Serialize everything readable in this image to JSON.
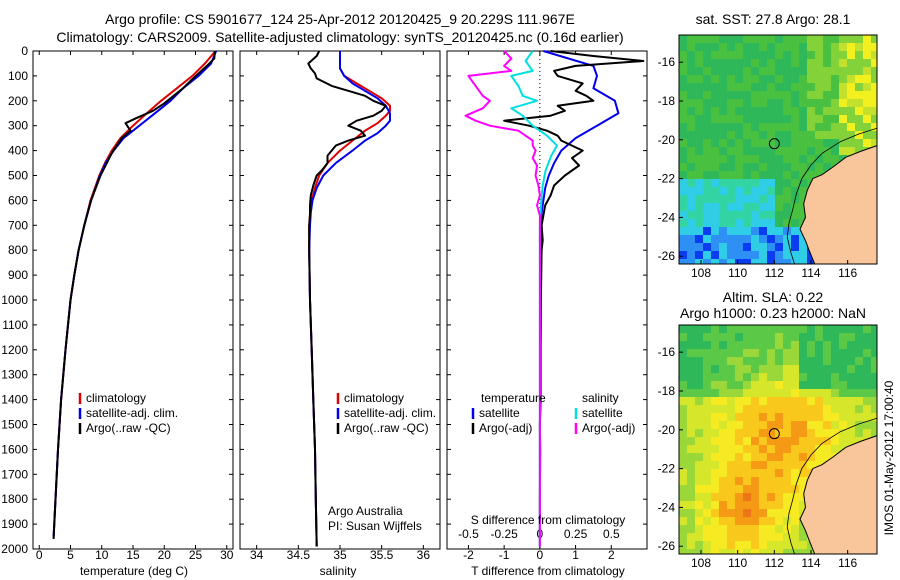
{
  "title": {
    "line1": "Argo profile: CS 5901677_124 25-Apr-2012 20120425_9 20.229S 111.967E",
    "line2": "Climatology: CARS2009. Satellite-adjusted climatology: synTS_20120425.nc (0.16d earlier)"
  },
  "colors": {
    "climatology": "#e00000",
    "satellite": "#0000ee",
    "argo": "#000000",
    "salinity_satellite": "#00e0e0",
    "salinity_argo": "#ff00ff",
    "land": "#f8c69a"
  },
  "depth_axis": {
    "range": [
      0,
      2000
    ],
    "ticks": [
      "0",
      "100",
      "200",
      "300",
      "400",
      "500",
      "600",
      "700",
      "800",
      "900",
      "1000",
      "1100",
      "1200",
      "1300",
      "1400",
      "1500",
      "1600",
      "1700",
      "1800",
      "1900",
      "2000"
    ]
  },
  "chart_data": [
    {
      "id": "temperature",
      "type": "line",
      "xlabel": "temperature (deg C)",
      "xlim": [
        -1,
        31
      ],
      "xticks": [
        "0",
        "5",
        "10",
        "15",
        "20",
        "25",
        "30"
      ],
      "legend": [
        "climatology",
        "satellite-adj. clim.",
        "Argo(..raw -QC)"
      ],
      "series": [
        {
          "name": "climatology",
          "depth": [
            0,
            50,
            100,
            150,
            200,
            250,
            300,
            350,
            400,
            450,
            500,
            600,
            700,
            800,
            900,
            1000,
            1200,
            1400,
            1600,
            1800,
            1950
          ],
          "values": [
            28.2,
            26.5,
            24.5,
            22.0,
            19.5,
            17.2,
            15.0,
            13.0,
            11.6,
            10.5,
            9.6,
            8.2,
            7.2,
            6.3,
            5.6,
            5.0,
            4.2,
            3.5,
            3.0,
            2.6,
            2.3
          ]
        },
        {
          "name": "satellite-adj. clim.",
          "depth": [
            0,
            50,
            100,
            150,
            200,
            250,
            300,
            350,
            400,
            450,
            500,
            600,
            700,
            800,
            900,
            1000,
            1200,
            1400,
            1600,
            1800,
            1950
          ],
          "values": [
            28.3,
            27.5,
            25.5,
            23.0,
            21.0,
            18.5,
            16.0,
            13.5,
            11.9,
            10.6,
            9.7,
            8.3,
            7.2,
            6.3,
            5.6,
            5.0,
            4.2,
            3.5,
            3.0,
            2.6,
            2.3
          ]
        },
        {
          "name": "Argo(..raw -QC)",
          "depth": [
            0,
            30,
            60,
            90,
            120,
            150,
            180,
            210,
            240,
            270,
            290,
            320,
            350,
            380,
            410,
            450,
            500,
            600,
            700,
            800,
            900,
            1000,
            1200,
            1400,
            1600,
            1800,
            1960
          ],
          "values": [
            28.1,
            28.0,
            26.8,
            25.5,
            24.2,
            23.0,
            21.5,
            20.0,
            18.2,
            15.5,
            13.8,
            14.6,
            13.2,
            12.4,
            11.6,
            10.8,
            9.8,
            8.3,
            7.2,
            6.3,
            5.6,
            5.0,
            4.2,
            3.5,
            3.0,
            2.6,
            2.3
          ]
        }
      ]
    },
    {
      "id": "salinity",
      "type": "line",
      "xlabel": "salinity",
      "xlim": [
        33.8,
        36.2
      ],
      "xticks": [
        "34",
        "34.5",
        "35",
        "35.5",
        "36"
      ],
      "legend": [
        "climatology",
        "satellite-adj. clim.",
        "Argo(..raw -QC)"
      ],
      "annotation": [
        "Argo Australia",
        "PI: Susan Wijffels"
      ],
      "series": [
        {
          "name": "climatology",
          "depth": [
            0,
            40,
            70,
            100,
            130,
            160,
            190,
            220,
            240,
            260,
            290,
            320,
            360,
            400,
            450,
            500,
            550,
            600,
            650,
            700,
            800,
            1000,
            1200,
            1400,
            1600,
            1800,
            1990
          ],
          "values": [
            35.0,
            35.0,
            35.0,
            35.05,
            35.2,
            35.35,
            35.5,
            35.6,
            35.6,
            35.55,
            35.45,
            35.3,
            35.15,
            35.0,
            34.85,
            34.75,
            34.7,
            34.66,
            34.64,
            34.63,
            34.63,
            34.64,
            34.66,
            34.68,
            34.7,
            34.71,
            34.72
          ]
        },
        {
          "name": "satellite-adj. clim.",
          "depth": [
            0,
            40,
            70,
            100,
            130,
            160,
            190,
            220,
            250,
            280,
            300,
            330,
            360,
            400,
            450,
            500,
            550,
            600,
            650,
            700,
            800,
            1000,
            1200,
            1400,
            1600,
            1800,
            1990
          ],
          "values": [
            35.0,
            35.0,
            35.0,
            35.05,
            35.15,
            35.3,
            35.45,
            35.55,
            35.6,
            35.6,
            35.55,
            35.45,
            35.3,
            35.15,
            34.95,
            34.8,
            34.72,
            34.67,
            34.65,
            34.64,
            34.63,
            34.64,
            34.66,
            34.68,
            34.7,
            34.71,
            34.72
          ]
        },
        {
          "name": "Argo(..raw -QC)",
          "depth": [
            0,
            20,
            50,
            70,
            90,
            110,
            140,
            160,
            180,
            200,
            220,
            240,
            260,
            280,
            300,
            320,
            340,
            360,
            380,
            400,
            420,
            450,
            480,
            500,
            540,
            580,
            620,
            660,
            700,
            760,
            800,
            1000,
            1200,
            1400,
            1600,
            1800,
            1990
          ],
          "values": [
            34.75,
            34.72,
            34.62,
            34.65,
            34.7,
            34.72,
            34.9,
            35.1,
            35.3,
            35.4,
            35.55,
            35.5,
            35.4,
            35.2,
            35.1,
            35.25,
            35.3,
            35.1,
            34.95,
            34.9,
            34.85,
            34.85,
            34.78,
            34.72,
            34.68,
            34.65,
            34.64,
            34.64,
            34.63,
            34.63,
            34.63,
            34.64,
            34.66,
            34.68,
            34.7,
            34.71,
            34.72
          ]
        }
      ]
    },
    {
      "id": "difference",
      "type": "line",
      "xlabel": "T difference from climatology",
      "x2label": "S difference from climatology",
      "xlim": [
        -2.6,
        3.0
      ],
      "xticks": [
        "-2",
        "-1",
        "0",
        "1",
        "2"
      ],
      "x2ticks": [
        "-0.5",
        "-0.25",
        "0",
        "0.25",
        "0.5"
      ],
      "legend_temperature": [
        "temperature",
        "satellite",
        "Argo(-adj)"
      ],
      "legend_salinity": [
        "salinity",
        "satellite",
        "Argo(-adj)"
      ],
      "series": [
        {
          "name": "temperature satellite",
          "depth": [
            0,
            30,
            60,
            100,
            150,
            200,
            250,
            300,
            350,
            400,
            450,
            500,
            550,
            600,
            650,
            700,
            800,
            900,
            1000,
            1200,
            1400,
            1500,
            1600,
            1800,
            1990
          ],
          "values": [
            0.1,
            0.8,
            1.5,
            1.6,
            1.5,
            2.1,
            2.2,
            1.6,
            1.0,
            0.6,
            0.4,
            0.25,
            0.15,
            0.1,
            0.05,
            0.05,
            0.03,
            0.02,
            0.02,
            0.01,
            0.01,
            0.0,
            0.0,
            0.0,
            0.0
          ]
        },
        {
          "name": "temperature Argo(-adj)",
          "depth": [
            0,
            20,
            40,
            60,
            80,
            100,
            130,
            160,
            180,
            200,
            220,
            240,
            260,
            280,
            300,
            320,
            340,
            360,
            380,
            400,
            430,
            460,
            500,
            540,
            580,
            620,
            660,
            700,
            760,
            800,
            1000,
            1200,
            1400,
            1500,
            1600,
            1800,
            1990
          ],
          "values": [
            0.3,
            1.5,
            2.9,
            1.0,
            0.4,
            0.5,
            1.2,
            1.0,
            1.3,
            1.5,
            0.5,
            0.7,
            0.3,
            -1.0,
            -0.3,
            0.2,
            0.5,
            0.6,
            0.9,
            1.2,
            0.9,
            1.1,
            0.7,
            0.4,
            0.3,
            0.15,
            0.1,
            0.05,
            0.08,
            0.05,
            0.03,
            0.02,
            0.02,
            0.0,
            0.01,
            0.0,
            0.0
          ]
        },
        {
          "name": "salinity satellite",
          "depth": [
            0,
            40,
            80,
            100,
            140,
            180,
            200,
            230,
            260,
            300,
            340,
            380,
            420,
            480,
            540,
            600,
            700,
            800,
            1000,
            1200,
            1400,
            1600,
            1800,
            1990
          ],
          "values": [
            -0.05,
            -0.1,
            -0.05,
            -0.2,
            -0.15,
            -0.12,
            -0.02,
            -0.2,
            -0.12,
            -0.05,
            0.05,
            0.12,
            0.08,
            0.04,
            0.02,
            0.01,
            0.0,
            0.0,
            0.0,
            0.0,
            0.0,
            0.0,
            0.0,
            0.0
          ]
        },
        {
          "name": "salinity Argo(-adj)",
          "depth": [
            0,
            30,
            60,
            80,
            100,
            140,
            180,
            200,
            230,
            260,
            280,
            300,
            320,
            340,
            360,
            380,
            400,
            430,
            460,
            500,
            540,
            580,
            620,
            660,
            700,
            800,
            900,
            1000,
            1200,
            1400,
            1600,
            1800,
            1990
          ],
          "values": [
            -0.25,
            -0.2,
            -0.25,
            -0.2,
            -0.5,
            -0.45,
            -0.4,
            -0.35,
            -0.4,
            -0.52,
            -0.45,
            -0.35,
            -0.15,
            -0.1,
            -0.05,
            -0.05,
            -0.03,
            -0.05,
            -0.02,
            -0.03,
            -0.01,
            0.0,
            -0.02,
            0.0,
            0.0,
            0.0,
            0.0,
            0.0,
            0.0,
            0.0,
            0.0,
            0.0,
            0.0
          ]
        }
      ]
    }
  ],
  "maps": [
    {
      "id": "sst-map",
      "title": "sat. SST: 27.8 Argo: 28.1",
      "xticks": [
        "108",
        "110",
        "112",
        "114",
        "116"
      ],
      "yticks": [
        "-16",
        "-18",
        "-20",
        "-22",
        "-24",
        "-26"
      ],
      "lon_range": [
        106.8,
        117.6
      ],
      "lat_range": [
        -26.4,
        -14.6
      ],
      "marker": {
        "lon": 112.0,
        "lat": -20.2
      },
      "palette": [
        "#0a3cf0",
        "#2e8ff5",
        "#2fcde6",
        "#33d4a3",
        "#2fb85a",
        "#49c040",
        "#84d23a",
        "#c2e02c",
        "#f2f01e"
      ]
    },
    {
      "id": "sla-map",
      "title1": "Altim. SLA: 0.22",
      "title2": "Argo h1000: 0.23 h2000: NaN",
      "xticks": [
        "108",
        "110",
        "112",
        "114",
        "116"
      ],
      "yticks": [
        "-16",
        "-18",
        "-20",
        "-22",
        "-24",
        "-26"
      ],
      "lon_range": [
        106.8,
        117.6
      ],
      "lat_range": [
        -26.4,
        -14.6
      ],
      "marker": {
        "lon": 112.0,
        "lat": -20.2
      },
      "palette": [
        "#2fb85a",
        "#5cc848",
        "#9ad83a",
        "#d6e62a",
        "#f6ea22",
        "#f9c81c",
        "#f59a14",
        "#ee7418"
      ]
    }
  ],
  "footer": "IMOS 01-May-2012 17:00:40"
}
